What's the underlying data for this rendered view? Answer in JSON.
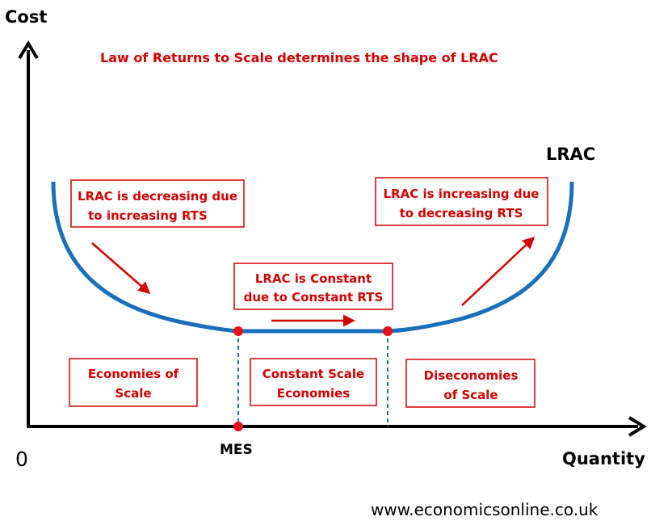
{
  "title": "Law of Returns to Scale determines the shape of LRAC",
  "axes": {
    "y_label": "Cost",
    "x_label": "Quantity",
    "origin_label": "0"
  },
  "curve": {
    "label": "LRAC",
    "color": "#1a6fbd"
  },
  "boxes": {
    "decreasing": [
      "LRAC is decreasing due",
      "to increasing RTS"
    ],
    "constant": [
      "LRAC is Constant",
      "due to Constant RTS"
    ],
    "increasing": [
      "LRAC is increasing due",
      "to decreasing RTS"
    ],
    "economies": [
      "Economies of",
      "Scale"
    ],
    "constant_scale": [
      "Constant Scale",
      "Economies"
    ],
    "diseconomies": [
      "Diseconomies",
      "of Scale"
    ]
  },
  "mes_label": "MES",
  "website": "www.economicsonline.co.uk",
  "colors": {
    "annotation": "#d40000",
    "curve": "#1a6fbd",
    "axis": "#000000"
  }
}
